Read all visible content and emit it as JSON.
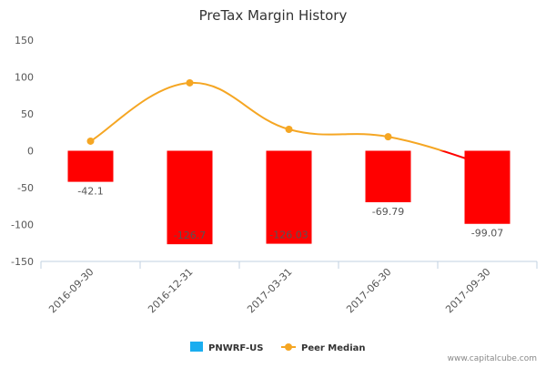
{
  "chart_data": {
    "type": "bar",
    "title": "PreTax Margin History",
    "categories": [
      "2016-09-30",
      "2016-12-31",
      "2017-03-31",
      "2017-06-30",
      "2017-09-30"
    ],
    "series": [
      {
        "name": "PNWRF-US",
        "kind": "bar",
        "values": [
          -42.1,
          -126.7,
          -126.03,
          -69.79,
          -99.07
        ],
        "labels": [
          "-42.1",
          "-126.7",
          "-126.03",
          "-69.79",
          "-99.07"
        ],
        "bar_color": "#ff0000",
        "legend_color": "#1aadef"
      },
      {
        "name": "Peer Median",
        "kind": "line",
        "values": [
          13,
          92,
          29,
          19,
          -20
        ],
        "color": "#f5a623",
        "negative_color": "#ff0000"
      }
    ],
    "ylim": [
      -150,
      150
    ],
    "yticks": [
      -150,
      -100,
      -50,
      0,
      50,
      100,
      150
    ],
    "grid": false,
    "legend": "bottom-center"
  },
  "credit": "www.capitalcube.com"
}
